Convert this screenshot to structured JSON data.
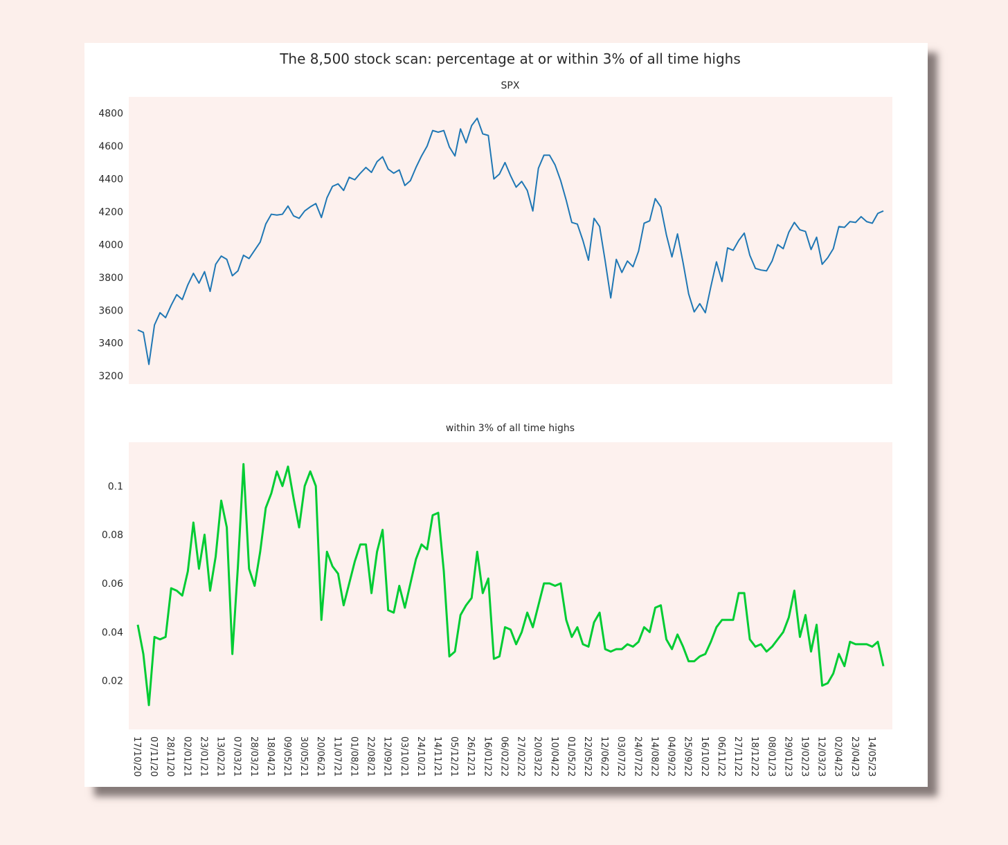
{
  "figure": {
    "title": "The 8,500 stock scan: percentage at or within 3% of all time highs"
  },
  "colors": {
    "page_bg": "#fcefeb",
    "plot_bg": "#fdf1ee",
    "spx_line": "#1f77b4",
    "pct_line": "#00cc33"
  },
  "chart_data": [
    {
      "type": "line",
      "title": "SPX",
      "xlabel": "",
      "ylabel": "",
      "ylim": [
        3150,
        4900
      ],
      "yticks": [
        3200,
        3400,
        3600,
        3800,
        4000,
        4200,
        4400,
        4600,
        4800
      ],
      "grid": false,
      "series": [
        {
          "values": [
            3480,
            3465,
            3270,
            3510,
            3585,
            3555,
            3630,
            3695,
            3665,
            3755,
            3825,
            3765,
            3835,
            3715,
            3880,
            3930,
            3910,
            3810,
            3840,
            3935,
            3915,
            3965,
            4015,
            4125,
            4185,
            4180,
            4185,
            4235,
            4175,
            4160,
            4205,
            4230,
            4250,
            4165,
            4285,
            4355,
            4370,
            4330,
            4410,
            4395,
            4435,
            4470,
            4440,
            4505,
            4535,
            4460,
            4435,
            4455,
            4360,
            4390,
            4470,
            4540,
            4600,
            4695,
            4685,
            4695,
            4595,
            4540,
            4705,
            4620,
            4725,
            4770,
            4675,
            4665,
            4400,
            4430,
            4500,
            4420,
            4350,
            4385,
            4330,
            4205,
            4465,
            4545,
            4545,
            4485,
            4390,
            4270,
            4135,
            4125,
            4025,
            3905,
            4160,
            4110,
            3900,
            3675,
            3910,
            3830,
            3900,
            3865,
            3960,
            4130,
            4145,
            4280,
            4230,
            4060,
            3925,
            4065,
            3890,
            3700,
            3590,
            3640,
            3585,
            3745,
            3895,
            3775,
            3980,
            3965,
            4025,
            4070,
            3935,
            3855,
            3845,
            3840,
            3900,
            4000,
            3975,
            4075,
            4135,
            4090,
            4080,
            3970,
            4045,
            3880,
            3920,
            3975,
            4110,
            4105,
            4140,
            4135,
            4170,
            4140,
            4130,
            4190,
            4205
          ]
        }
      ]
    },
    {
      "type": "line",
      "title": "within 3% of all time highs",
      "xlabel": "",
      "ylabel": "",
      "ylim": [
        0.0,
        0.118
      ],
      "yticks": [
        0.02,
        0.04,
        0.06,
        0.08,
        0.1
      ],
      "ytick_labels": [
        "0.02",
        "0.04",
        "0.06",
        "0.08",
        "0.1"
      ],
      "grid": false,
      "series": [
        {
          "values": [
            0.043,
            0.031,
            0.01,
            0.038,
            0.037,
            0.038,
            0.058,
            0.057,
            0.055,
            0.065,
            0.085,
            0.066,
            0.08,
            0.057,
            0.071,
            0.094,
            0.083,
            0.031,
            0.067,
            0.109,
            0.066,
            0.059,
            0.073,
            0.091,
            0.097,
            0.106,
            0.1,
            0.108,
            0.095,
            0.083,
            0.1,
            0.106,
            0.1,
            0.045,
            0.073,
            0.067,
            0.064,
            0.051,
            0.06,
            0.069,
            0.076,
            0.076,
            0.056,
            0.073,
            0.082,
            0.049,
            0.048,
            0.059,
            0.05,
            0.06,
            0.07,
            0.076,
            0.074,
            0.088,
            0.089,
            0.065,
            0.03,
            0.032,
            0.047,
            0.051,
            0.054,
            0.073,
            0.056,
            0.062,
            0.029,
            0.03,
            0.042,
            0.041,
            0.035,
            0.04,
            0.048,
            0.042,
            0.051,
            0.06,
            0.06,
            0.059,
            0.06,
            0.045,
            0.038,
            0.042,
            0.035,
            0.034,
            0.044,
            0.048,
            0.033,
            0.032,
            0.033,
            0.033,
            0.035,
            0.034,
            0.036,
            0.042,
            0.04,
            0.05,
            0.051,
            0.037,
            0.033,
            0.039,
            0.034,
            0.028,
            0.028,
            0.03,
            0.031,
            0.036,
            0.042,
            0.045,
            0.045,
            0.045,
            0.056,
            0.056,
            0.037,
            0.034,
            0.035,
            0.032,
            0.034,
            0.037,
            0.04,
            0.046,
            0.057,
            0.038,
            0.047,
            0.032,
            0.043,
            0.018,
            0.019,
            0.023,
            0.031,
            0.026,
            0.036,
            0.035,
            0.035,
            0.035,
            0.034,
            0.036,
            0.026
          ]
        }
      ]
    }
  ],
  "x_axis": {
    "tick_labels": [
      "17/10/20",
      "07/11/20",
      "28/11/20",
      "02/01/21",
      "23/01/21",
      "13/02/21",
      "07/03/21",
      "28/03/21",
      "18/04/21",
      "09/05/21",
      "30/05/21",
      "20/06/21",
      "11/07/21",
      "01/08/21",
      "22/08/21",
      "12/09/21",
      "03/10/21",
      "24/10/21",
      "14/11/21",
      "05/12/21",
      "26/12/21",
      "16/01/22",
      "06/02/22",
      "27/02/22",
      "20/03/22",
      "10/04/22",
      "01/05/22",
      "22/05/22",
      "12/06/22",
      "03/07/22",
      "24/07/22",
      "14/08/22",
      "04/09/22",
      "25/09/22",
      "16/10/22",
      "06/11/22",
      "27/11/22",
      "18/12/22",
      "08/01/23",
      "29/01/23",
      "19/02/23",
      "12/03/23",
      "02/04/23",
      "23/04/23",
      "14/05/23"
    ]
  }
}
